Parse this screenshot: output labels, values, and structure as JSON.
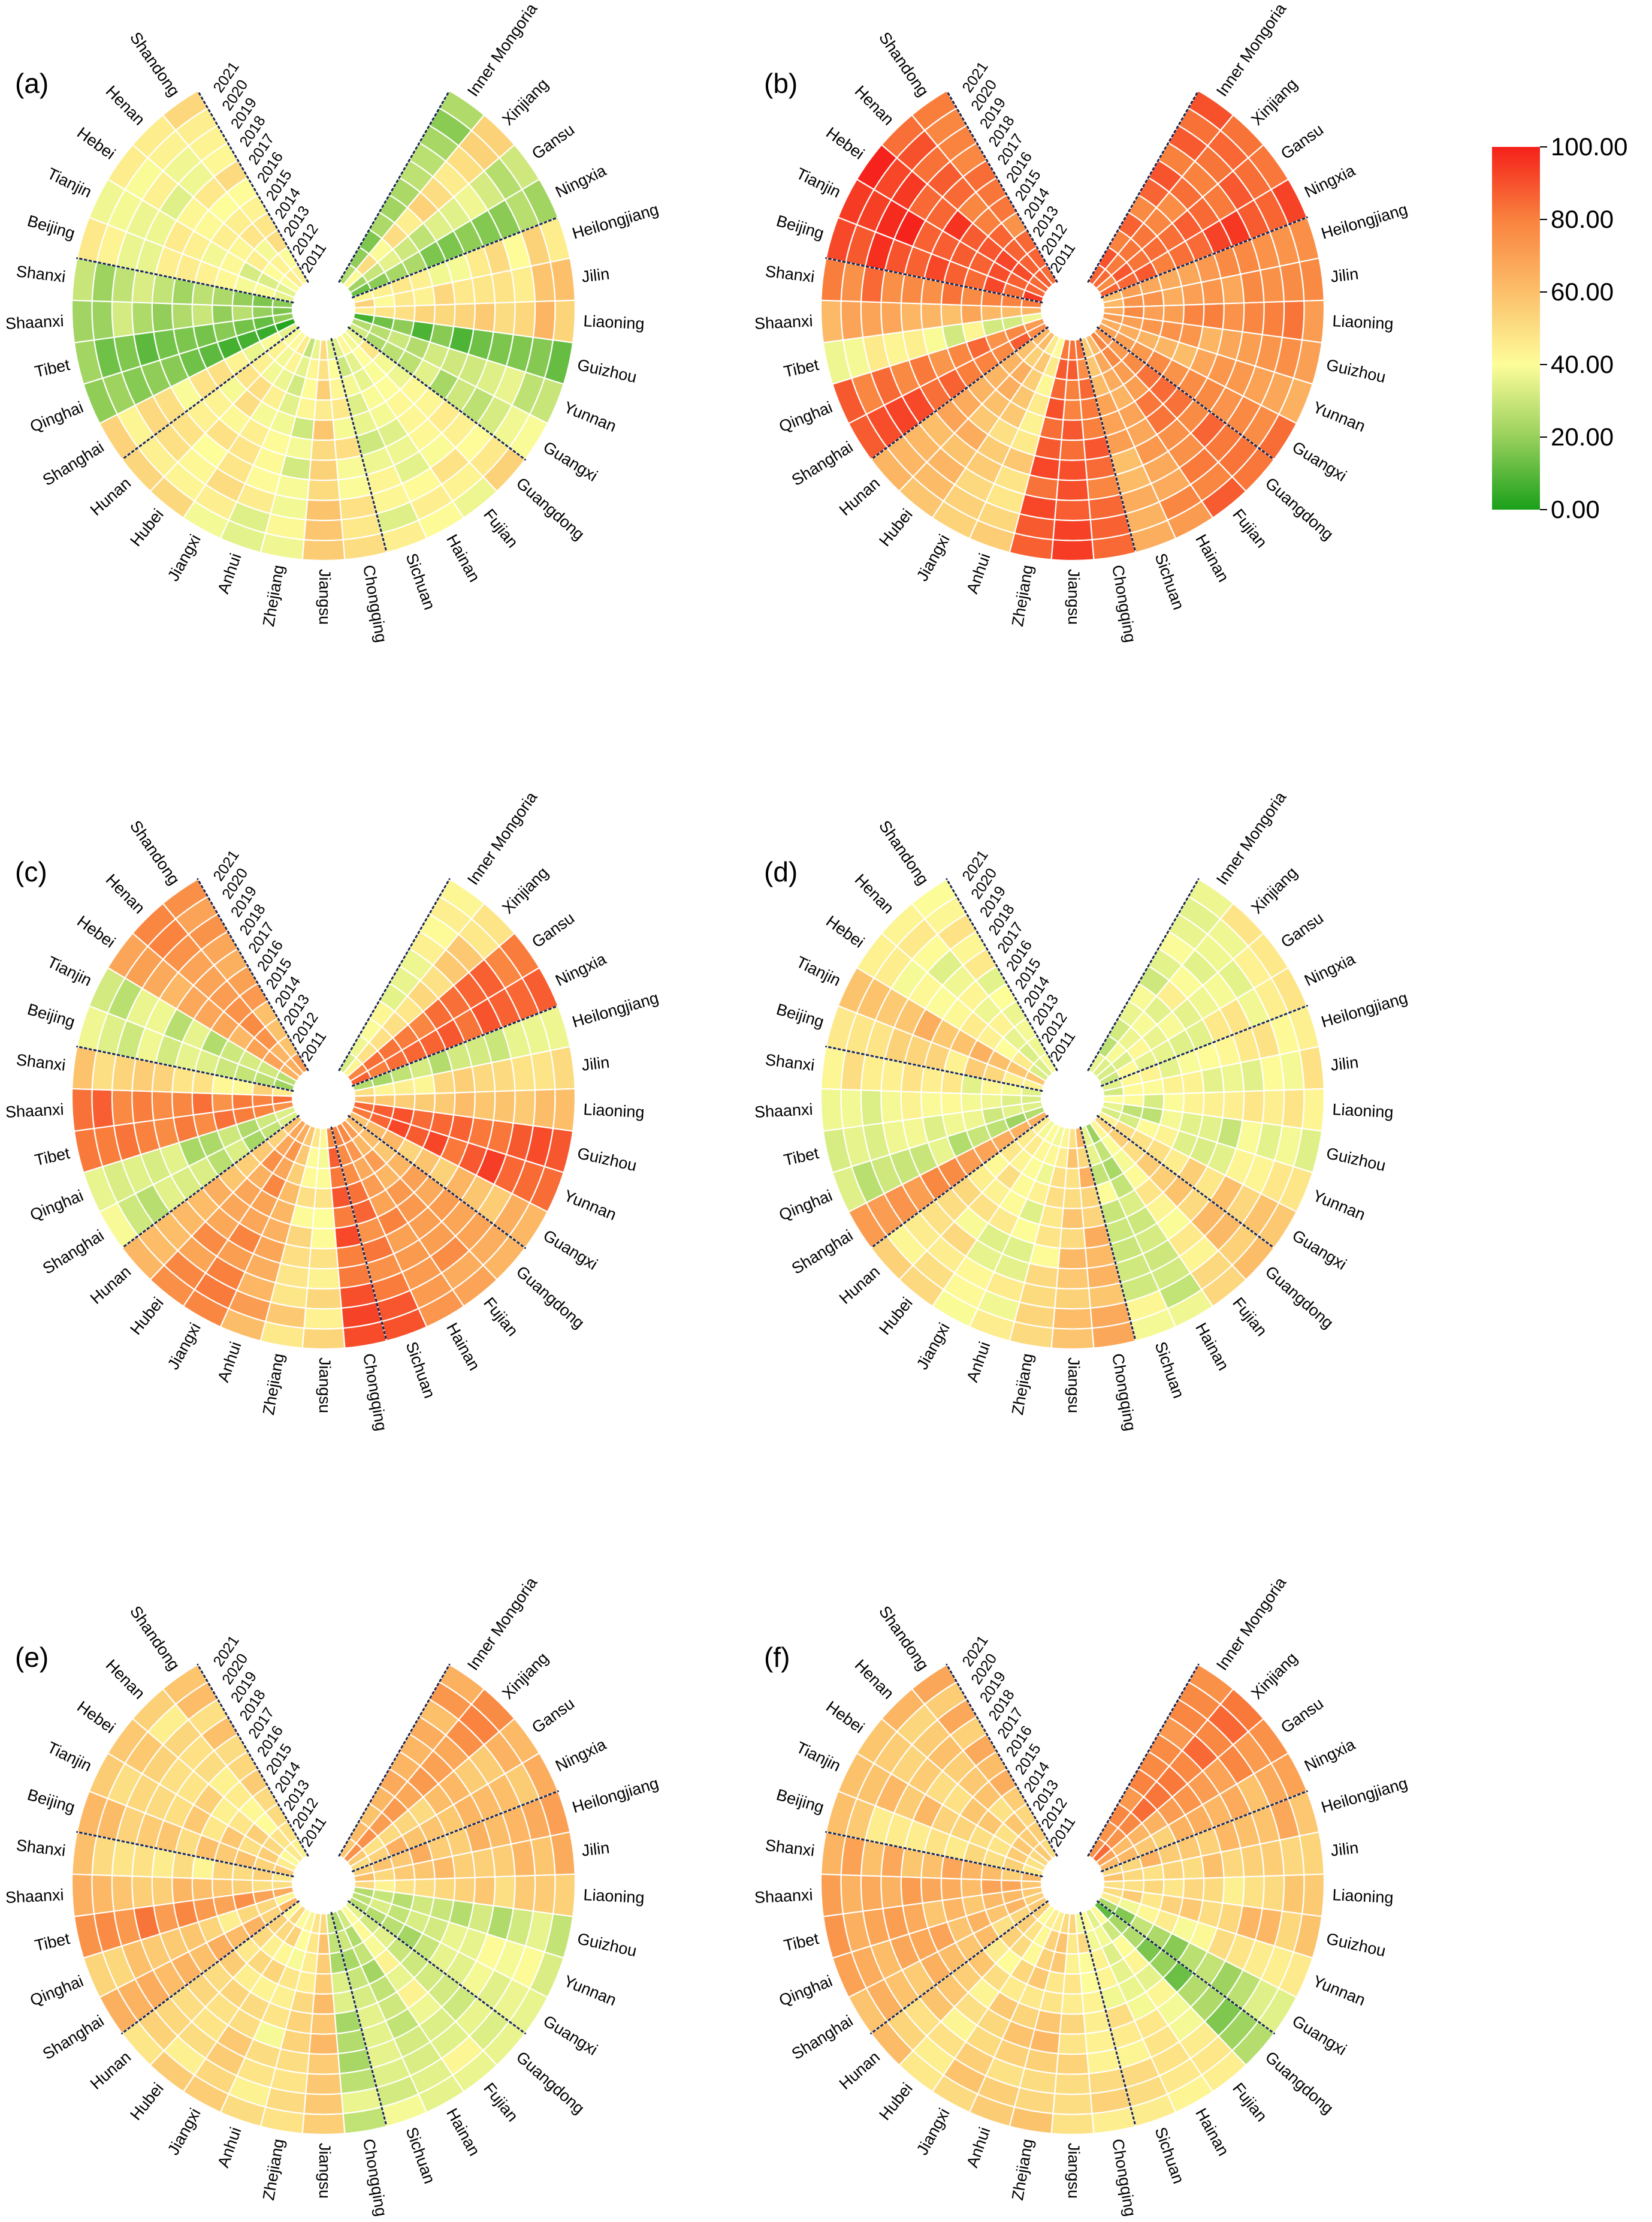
{
  "chart_data": {
    "type": "polar-heatmap",
    "panels": [
      "(a)",
      "(b)",
      "(c)",
      "(d)",
      "(e)",
      "(f)"
    ],
    "regions": [
      "Inner Mongoria",
      "Xinjiang",
      "Gansu",
      "Ningxia",
      "Heilongjiang",
      "Jilin",
      "Liaoning",
      "Guizhou",
      "Yunnan",
      "Guangxi",
      "Guangdong",
      "Fujian",
      "Hainan",
      "Sichuan",
      "Chongqing",
      "Jiangsu",
      "Zhejiang",
      "Anhui",
      "Jiangxi",
      "Hubei",
      "Hunan",
      "Shanghai",
      "Qinghai",
      "Tibet",
      "Shaanxi",
      "Shanxi",
      "Beijing",
      "Tianjin",
      "Hebei",
      "Henan",
      "Shandong"
    ],
    "years": [
      "2011",
      "2012",
      "2013",
      "2014",
      "2015",
      "2016",
      "2017",
      "2018",
      "2019",
      "2020",
      "2021"
    ],
    "group_boundaries_after_index": [
      3,
      9,
      13,
      20,
      25
    ],
    "colorbar": {
      "min": 0,
      "max": 100,
      "ticks": [
        "0.00",
        "20.00",
        "40.00",
        "60.00",
        "80.00",
        "100.00"
      ],
      "colors": [
        "#1aa01a",
        "#98d05c",
        "#fdfd9a",
        "#fcbf6a",
        "#f9823e",
        "#f5201a"
      ]
    },
    "values_by_panel_region_mean": [
      [
        22,
        48,
        30,
        20,
        45,
        50,
        55,
        15,
        30,
        30,
        45,
        40,
        40,
        35,
        45,
        52,
        38,
        38,
        42,
        45,
        46,
        45,
        12,
        15,
        25,
        25,
        40,
        40,
        40,
        42,
        45
      ],
      [
        85,
        82,
        85,
        88,
        70,
        72,
        75,
        70,
        68,
        78,
        80,
        78,
        70,
        65,
        82,
        85,
        85,
        50,
        55,
        62,
        66,
        85,
        80,
        38,
        65,
        78,
        92,
        92,
        90,
        85,
        82
      ],
      [
        40,
        50,
        80,
        85,
        30,
        50,
        60,
        85,
        88,
        58,
        65,
        70,
        75,
        80,
        85,
        45,
        48,
        62,
        75,
        72,
        60,
        30,
        30,
        82,
        82,
        50,
        30,
        30,
        68,
        72,
        68
      ],
      [
        35,
        38,
        40,
        40,
        40,
        40,
        40,
        35,
        38,
        52,
        55,
        45,
        30,
        35,
        60,
        55,
        45,
        40,
        40,
        45,
        45,
        72,
        30,
        35,
        38,
        42,
        50,
        60,
        42,
        40,
        42
      ],
      [
        65,
        72,
        55,
        60,
        62,
        58,
        50,
        30,
        35,
        30,
        35,
        38,
        28,
        30,
        28,
        55,
        50,
        45,
        50,
        48,
        50,
        60,
        52,
        75,
        58,
        50,
        55,
        52,
        50,
        48,
        52
      ],
      [
        75,
        82,
        70,
        60,
        60,
        55,
        50,
        55,
        45,
        25,
        20,
        38,
        42,
        45,
        48,
        52,
        55,
        52,
        50,
        48,
        52,
        58,
        65,
        65,
        65,
        62,
        50,
        55,
        55,
        55,
        60
      ]
    ]
  }
}
